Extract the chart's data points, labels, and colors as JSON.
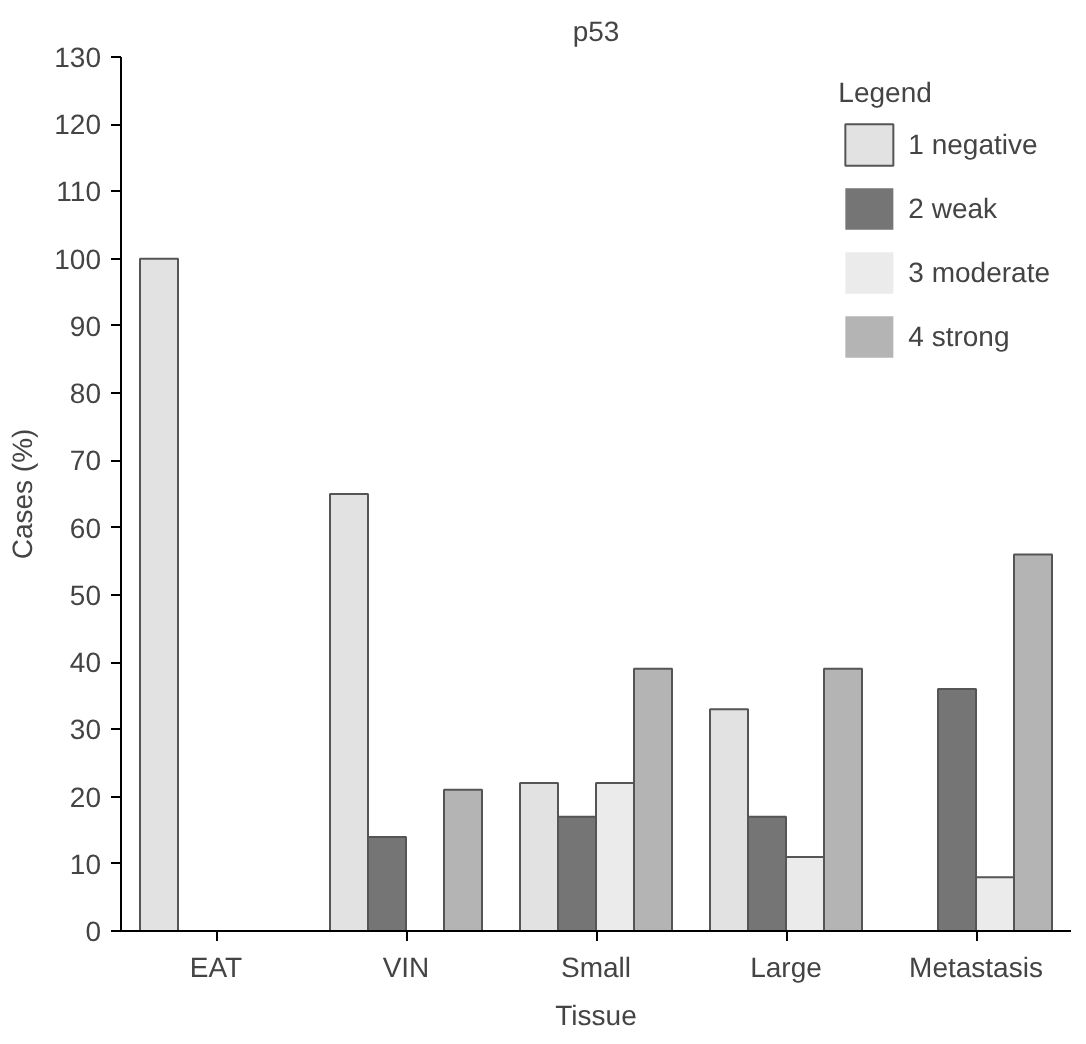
{
  "chart_data": {
    "type": "bar",
    "title": "p53",
    "xlabel": "Tissue",
    "ylabel": "Cases (%)",
    "legend_title": "Legend",
    "categories": [
      "EAT",
      "VIN",
      "Small",
      "Large",
      "Metastasis"
    ],
    "series": [
      {
        "name": "1 negative",
        "color": "#e2e2e2",
        "values": [
          100,
          65,
          22,
          33,
          0
        ]
      },
      {
        "name": "2 weak",
        "color": "#757575",
        "values": [
          0,
          14,
          17,
          17,
          36
        ]
      },
      {
        "name": "3 moderate",
        "color": "#ebebeb",
        "values": [
          0,
          0,
          22,
          11,
          8
        ]
      },
      {
        "name": "4 strong",
        "color": "#b4b4b4",
        "values": [
          0,
          21,
          39,
          39,
          56
        ]
      }
    ],
    "ylim": [
      0,
      130
    ],
    "yticks": [
      0,
      10,
      20,
      30,
      40,
      50,
      60,
      70,
      80,
      90,
      100,
      110,
      120,
      130
    ],
    "grid": false,
    "legend": "top right"
  }
}
